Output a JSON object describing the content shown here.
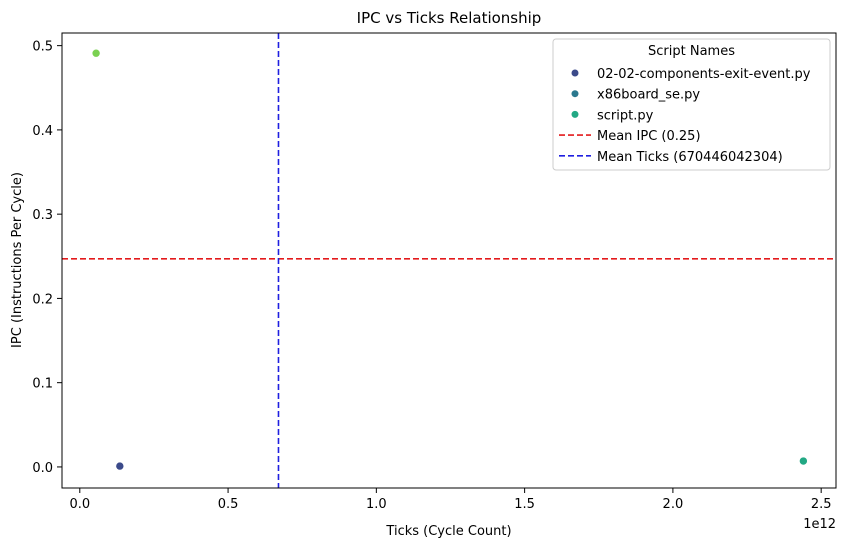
{
  "chart_data": {
    "type": "scatter",
    "title": "IPC vs Ticks Relationship",
    "xlabel": "Ticks (Cycle Count)",
    "ylabel": "IPC (Instructions Per Cycle)",
    "x_offset_label": "1e12",
    "xlim": [
      -0.06,
      2.55
    ],
    "ylim": [
      -0.025,
      0.515
    ],
    "xticks": [
      0,
      0.5,
      1.0,
      1.5,
      2.0,
      2.5
    ],
    "xtick_labels": [
      "0.0",
      "0.5",
      "1.0",
      "1.5",
      "2.0",
      "2.5"
    ],
    "yticks": [
      0,
      0.1,
      0.2,
      0.3,
      0.4,
      0.5
    ],
    "ytick_labels": [
      "0.0",
      "0.1",
      "0.2",
      "0.3",
      "0.4",
      "0.5"
    ],
    "points": [
      {
        "x": 0.055,
        "y": 0.491,
        "color": "#7ad151"
      },
      {
        "x": 0.135,
        "y": 0.001,
        "color": "#3b4a8a"
      },
      {
        "x": 2.44,
        "y": 0.007,
        "color": "#22a884"
      }
    ],
    "reference_lines": [
      {
        "orientation": "horizontal",
        "value": 0.247,
        "color": "#e31a1c",
        "style": "dashed"
      },
      {
        "orientation": "vertical",
        "value": 0.67,
        "color": "#1f1fe0",
        "style": "dashed"
      }
    ],
    "legend": {
      "title": "Script Names",
      "placement": "top-right",
      "items": [
        {
          "label": "02-02-components-exit-event.py",
          "kind": "marker",
          "color": "#3b4a8a"
        },
        {
          "label": "x86board_se.py",
          "kind": "marker",
          "color": "#2a788e"
        },
        {
          "label": "script.py",
          "kind": "marker",
          "color": "#22a884"
        },
        {
          "label": "Mean IPC (0.25)",
          "kind": "line",
          "color": "#e31a1c"
        },
        {
          "label": "Mean Ticks (670446042304)",
          "kind": "line",
          "color": "#1f1fe0"
        }
      ]
    }
  }
}
